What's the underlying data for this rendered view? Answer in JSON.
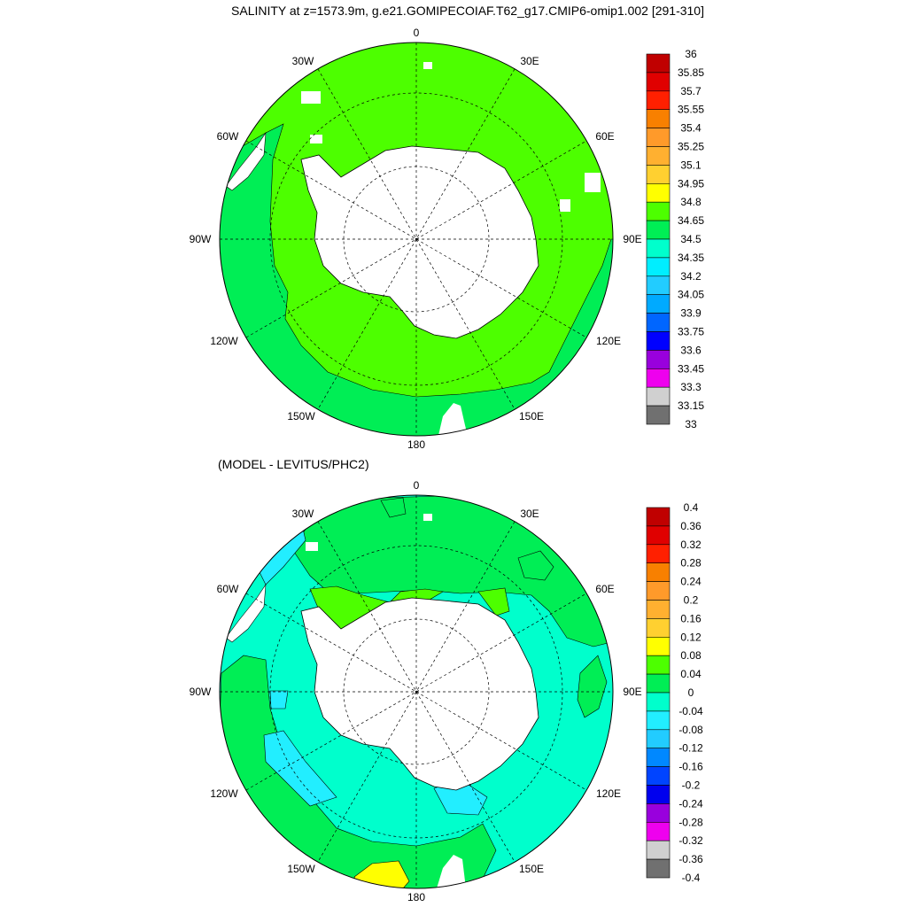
{
  "top_panel": {
    "title": "SALINITY at z=1573.9m, g.e21.GOMIPECOIAF.T62_g17.CMIP6-omip1.002 [291-310]",
    "lon_labels": [
      "0",
      "30E",
      "60E",
      "90E",
      "120E",
      "150E",
      "180",
      "150W",
      "120W",
      "90W",
      "60W",
      "30W"
    ],
    "colorbar": {
      "levels": [
        "36",
        "35.85",
        "35.7",
        "35.55",
        "35.4",
        "35.25",
        "35.1",
        "34.95",
        "34.8",
        "34.65",
        "34.5",
        "34.35",
        "34.2",
        "34.05",
        "33.9",
        "33.75",
        "33.6",
        "33.45",
        "33.3",
        "33.15",
        "33"
      ],
      "colors": [
        "#c00000",
        "#e00000",
        "#ff2000",
        "#f88000",
        "#ff9a2a",
        "#ffb030",
        "#ffd030",
        "#ffff00",
        "#4dff00",
        "#00ee55",
        "#00ffcc",
        "#00eeff",
        "#22ccff",
        "#00aaff",
        "#0066ff",
        "#0000ff",
        "#9900dd",
        "#ee00ee",
        "#d0d0d0",
        "#707070"
      ]
    }
  },
  "bottom_panel": {
    "title": "(MODEL - LEVITUS/PHC2)",
    "lon_labels": [
      "0",
      "30E",
      "60E",
      "90E",
      "120E",
      "150E",
      "180",
      "150W",
      "120W",
      "90W",
      "60W",
      "30W"
    ],
    "colorbar": {
      "levels": [
        "0.4",
        "0.36",
        "0.32",
        "0.28",
        "0.24",
        "0.2",
        "0.16",
        "0.12",
        "0.08",
        "0.04",
        "0",
        "-0.04",
        "-0.08",
        "-0.12",
        "-0.16",
        "-0.2",
        "-0.24",
        "-0.28",
        "-0.32",
        "-0.36",
        "-0.4"
      ],
      "colors": [
        "#c00000",
        "#e00000",
        "#ff2000",
        "#f88000",
        "#ff9a2a",
        "#ffb030",
        "#ffd030",
        "#ffff00",
        "#4dff00",
        "#00ee55",
        "#00ffcc",
        "#22eeff",
        "#22ccff",
        "#0088ff",
        "#0044ff",
        "#0000ee",
        "#9900dd",
        "#ee00ee",
        "#d0d0d0",
        "#707070"
      ]
    }
  },
  "field_colors": {
    "green": "#4dff00",
    "medium_green": "#00ee55",
    "aqua": "#00ffcc",
    "cyan": "#22eeff",
    "yellow": "#ffff00",
    "land": "#ffffff"
  }
}
